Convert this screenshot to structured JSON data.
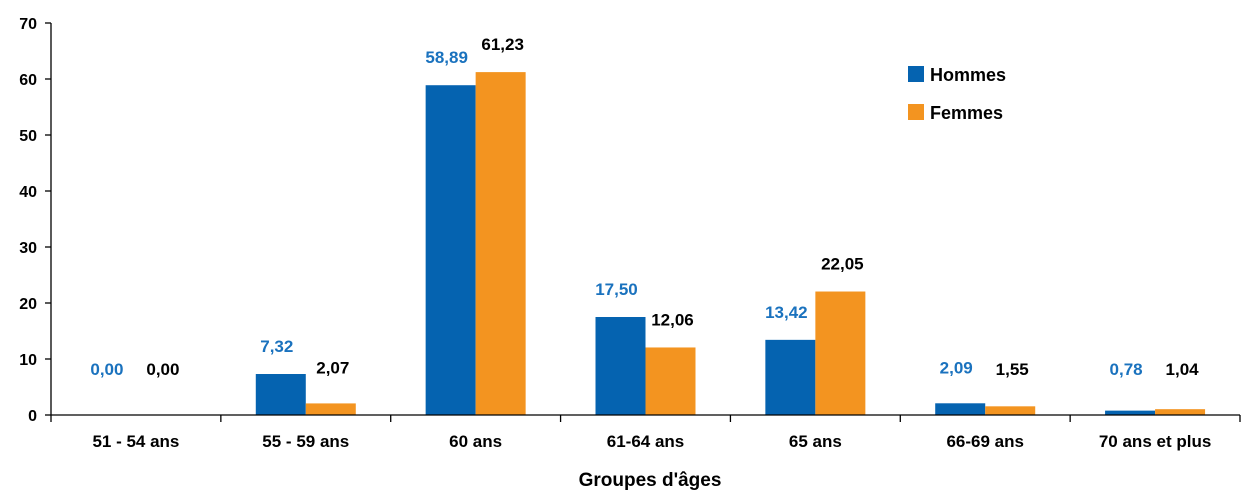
{
  "chart_data": {
    "type": "bar",
    "title": "",
    "xlabel": "Groupes d'âges",
    "ylabel": "",
    "ylim": [
      0,
      70
    ],
    "yticks": [
      "0",
      "10",
      "20",
      "30",
      "40",
      "50",
      "60",
      "70"
    ],
    "categories": [
      "51 - 54 ans",
      "55 - 59 ans",
      "60 ans",
      "61-64 ans",
      "65 ans",
      "66-69 ans",
      "70 ans et plus"
    ],
    "series": [
      {
        "name": "Hommes",
        "color": "#0563B0",
        "label_color": "#1A72BE",
        "values": [
          0.0,
          7.32,
          58.89,
          17.5,
          13.42,
          2.09,
          0.78
        ],
        "labels": [
          "0,00",
          "7,32",
          "58,89",
          "17,50",
          "13,42",
          "2,09",
          "0,78"
        ]
      },
      {
        "name": "Femmes",
        "color": "#F39420",
        "label_color": "#000000",
        "values": [
          0.0,
          2.07,
          61.23,
          12.06,
          22.05,
          1.55,
          1.04
        ],
        "labels": [
          "0,00",
          "2,07",
          "61,23",
          "12,06",
          "22,05",
          "1,55",
          "1,04"
        ]
      }
    ],
    "legend_position": "top-right",
    "grid": false
  }
}
